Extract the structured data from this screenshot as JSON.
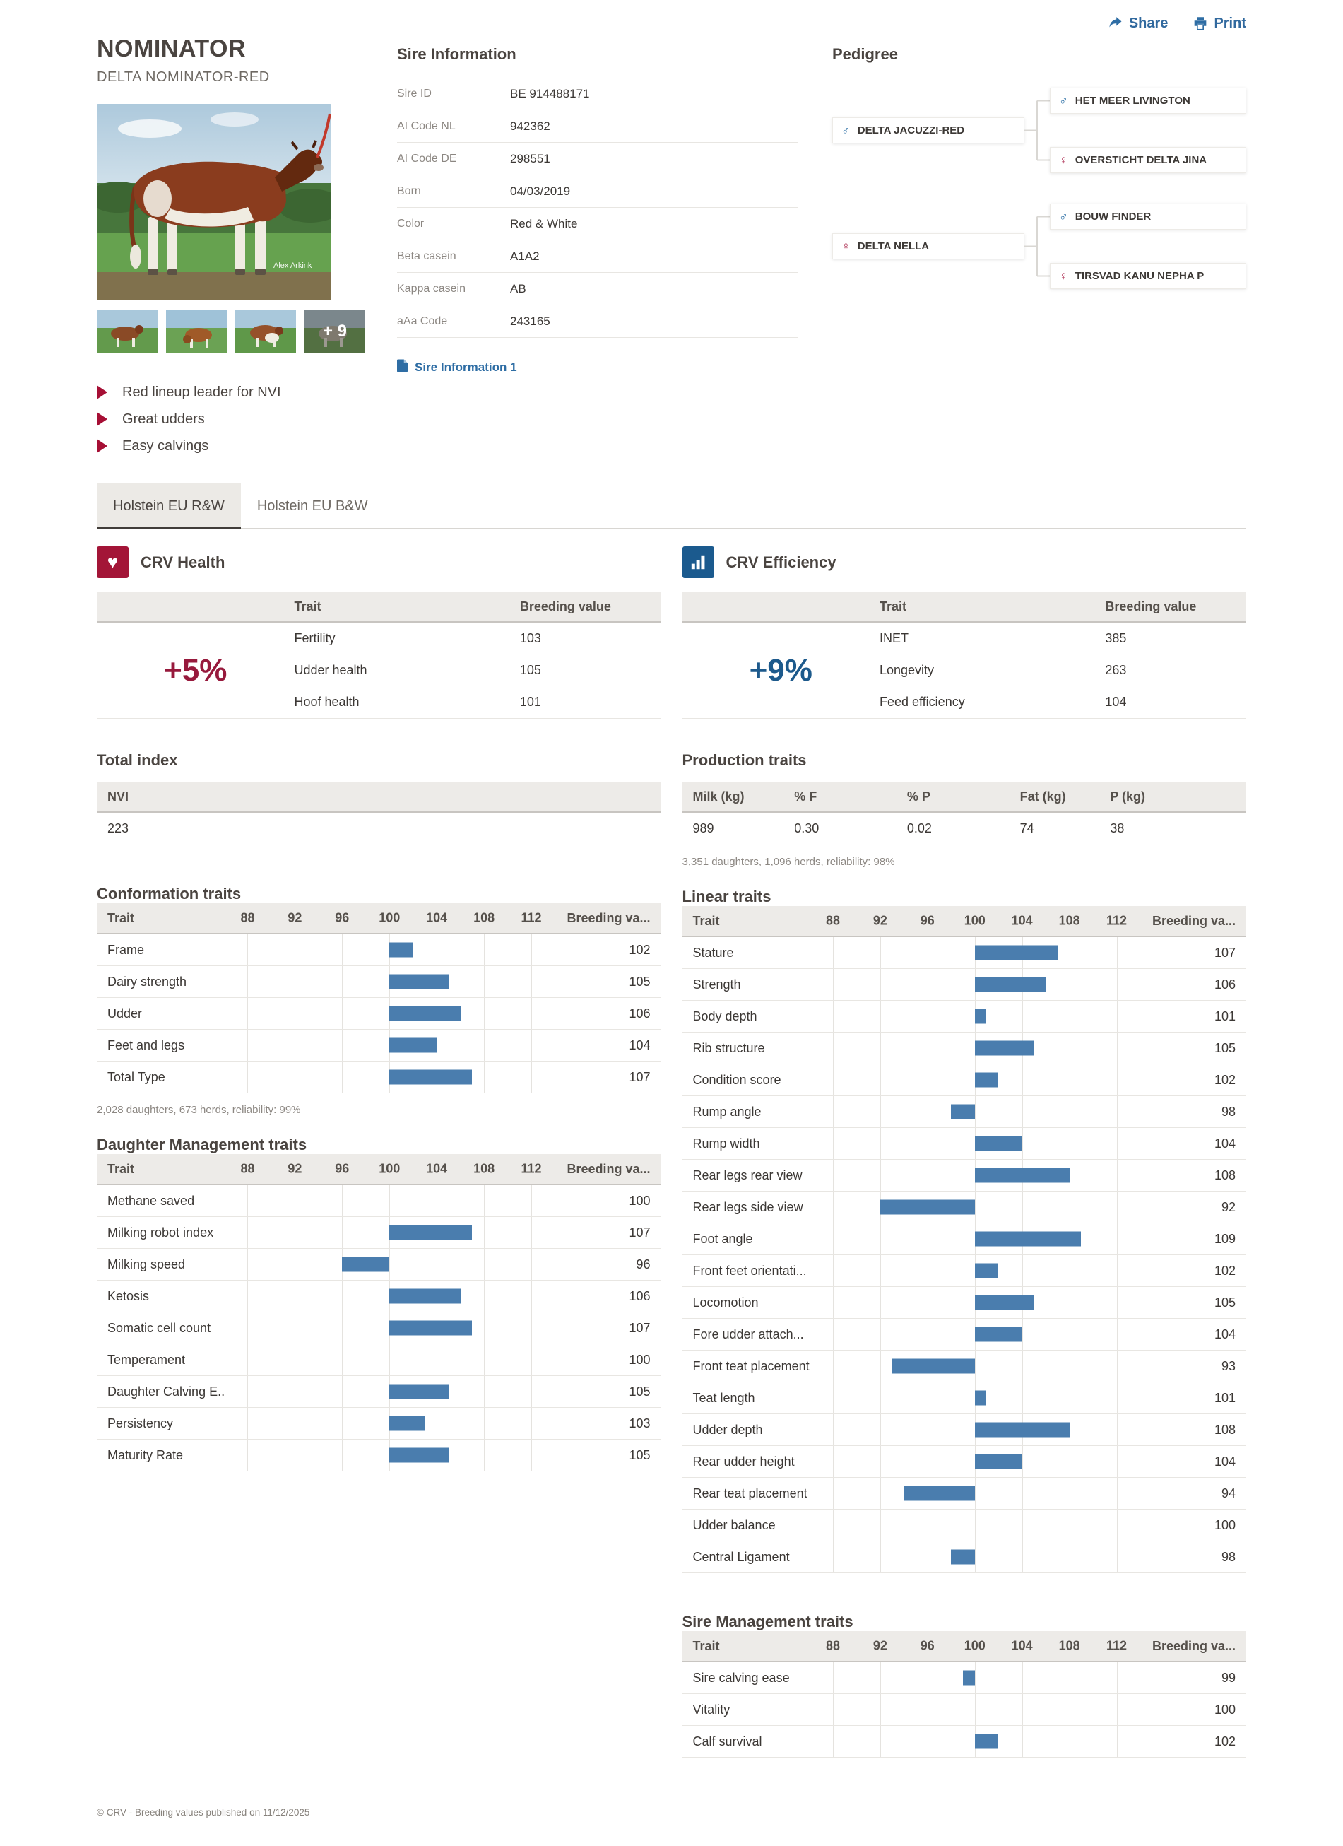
{
  "page": {
    "share_label": "Share",
    "print_label": "Print",
    "footer": "© CRV - Breeding values published on 11/12/2025",
    "colors": {
      "accent_red": "#a31537",
      "accent_blue": "#1b5a8e",
      "bar_blue": "#4a7dae",
      "link_blue": "#2e6da4",
      "female_pink": "#b03558"
    }
  },
  "header": {
    "title": "NOMINATOR",
    "subtitle": "DELTA NOMINATOR-RED",
    "photo_credit": "Alex Arkink",
    "thumbs_more": "+ 9",
    "bullets": [
      "Red lineup leader for NVI",
      "Great udders",
      "Easy calvings"
    ]
  },
  "sire_information": {
    "heading": "Sire Information",
    "rows": [
      {
        "label": "Sire ID",
        "value": "BE 914488171"
      },
      {
        "label": "AI Code NL",
        "value": "942362"
      },
      {
        "label": "AI Code DE",
        "value": "298551"
      },
      {
        "label": "Born",
        "value": "04/03/2019"
      },
      {
        "label": "Color",
        "value": "Red & White"
      },
      {
        "label": "Beta casein",
        "value": "A1A2"
      },
      {
        "label": "Kappa casein",
        "value": "AB"
      },
      {
        "label": "aAa Code",
        "value": "243165"
      }
    ],
    "pdf_link": "Sire Information 1"
  },
  "pedigree": {
    "heading": "Pedigree",
    "groups": [
      {
        "parent": {
          "name": "DELTA JACUZZI-RED",
          "sex": "male",
          "symbol": "♂"
        },
        "grandparents": [
          {
            "name": "HET MEER LIVINGTON",
            "sex": "male",
            "symbol": "♂"
          },
          {
            "name": "OVERSTICHT DELTA JINA",
            "sex": "female",
            "symbol": "♀"
          }
        ]
      },
      {
        "parent": {
          "name": "DELTA NELLA",
          "sex": "female",
          "symbol": "♀"
        },
        "grandparents": [
          {
            "name": "BOUW FINDER",
            "sex": "male",
            "symbol": "♂"
          },
          {
            "name": "TIRSVAD KANU NEPHA P",
            "sex": "female",
            "symbol": "♀"
          }
        ]
      }
    ]
  },
  "tabs": [
    {
      "label": "Holstein EU R&W",
      "active": true
    },
    {
      "label": "Holstein EU B&W",
      "active": false
    }
  ],
  "crv_health": {
    "heading": "CRV Health",
    "score": "+5%",
    "columns": {
      "trait": "Trait",
      "value": "Breeding value"
    },
    "rows": [
      {
        "trait": "Fertility",
        "value": "103"
      },
      {
        "trait": "Udder health",
        "value": "105"
      },
      {
        "trait": "Hoof health",
        "value": "101"
      }
    ]
  },
  "crv_efficiency": {
    "heading": "CRV Efficiency",
    "score": "+9%",
    "columns": {
      "trait": "Trait",
      "value": "Breeding value"
    },
    "rows": [
      {
        "trait": "INET",
        "value": "385"
      },
      {
        "trait": "Longevity",
        "value": "263"
      },
      {
        "trait": "Feed efficiency",
        "value": "104"
      }
    ]
  },
  "total_index": {
    "heading": "Total index",
    "column": "NVI",
    "value": "223"
  },
  "production": {
    "heading": "Production traits",
    "columns": [
      "Milk (kg)",
      "% F",
      "% P",
      "Fat (kg)",
      "P (kg)"
    ],
    "values": [
      "989",
      "0.30",
      "0.02",
      "74",
      "38"
    ],
    "footnote": "3,351 daughters, 1,096 herds, reliability: 98%"
  },
  "conformation_footnote": "2,028 daughters, 673 herds, reliability: 99%",
  "chart_data": [
    {
      "id": "conformation",
      "type": "bar",
      "title": "Conformation traits",
      "trait_col": "Trait",
      "value_col": "Breeding va...",
      "ticks": [
        88,
        92,
        96,
        100,
        104,
        108,
        112
      ],
      "xlim": [
        86,
        114
      ],
      "baseline": 100,
      "categories": [
        "Frame",
        "Dairy strength",
        "Udder",
        "Feet and legs",
        "Total Type"
      ],
      "values": [
        102,
        105,
        106,
        104,
        107
      ]
    },
    {
      "id": "daughter_management",
      "type": "bar",
      "title": "Daughter Management traits",
      "trait_col": "Trait",
      "value_col": "Breeding va...",
      "ticks": [
        88,
        92,
        96,
        100,
        104,
        108,
        112
      ],
      "xlim": [
        86,
        114
      ],
      "baseline": 100,
      "categories": [
        "Methane saved",
        "Milking robot index",
        "Milking speed",
        "Ketosis",
        "Somatic cell count",
        "Temperament",
        "Daughter Calving E...",
        "Persistency",
        "Maturity Rate"
      ],
      "values": [
        100,
        107,
        96,
        106,
        107,
        100,
        105,
        103,
        105
      ]
    },
    {
      "id": "linear",
      "type": "bar",
      "title": "Linear traits",
      "trait_col": "Trait",
      "value_col": "Breeding va...",
      "ticks": [
        88,
        92,
        96,
        100,
        104,
        108,
        112
      ],
      "xlim": [
        86,
        114
      ],
      "baseline": 100,
      "categories": [
        "Stature",
        "Strength",
        "Body depth",
        "Rib structure",
        "Condition score",
        "Rump angle",
        "Rump width",
        "Rear legs rear view",
        "Rear legs side view",
        "Foot angle",
        "Front feet orientati...",
        "Locomotion",
        "Fore udder attach...",
        "Front teat placement",
        "Teat length",
        "Udder depth",
        "Rear udder height",
        "Rear teat placement",
        "Udder balance",
        "Central Ligament"
      ],
      "values": [
        107,
        106,
        101,
        105,
        102,
        98,
        104,
        108,
        92,
        109,
        102,
        105,
        104,
        93,
        101,
        108,
        104,
        94,
        100,
        98
      ]
    },
    {
      "id": "sire_management",
      "type": "bar",
      "title": "Sire Management traits",
      "trait_col": "Trait",
      "value_col": "Breeding va...",
      "ticks": [
        88,
        92,
        96,
        100,
        104,
        108,
        112
      ],
      "xlim": [
        86,
        114
      ],
      "baseline": 100,
      "categories": [
        "Sire calving ease",
        "Vitality",
        "Calf survival"
      ],
      "values": [
        99,
        100,
        102
      ]
    }
  ]
}
